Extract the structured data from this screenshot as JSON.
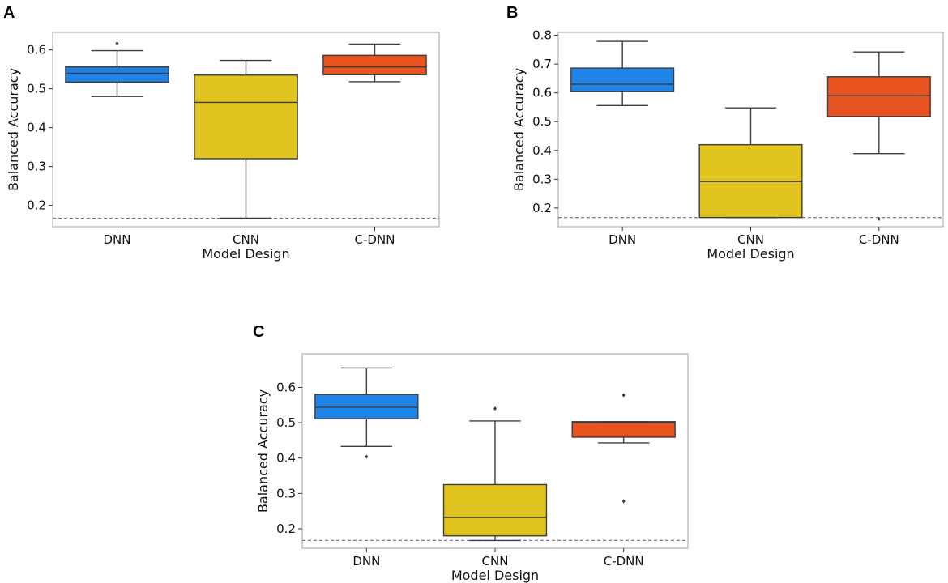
{
  "chart_data": [
    {
      "panel": "A",
      "type": "box",
      "xlabel": "Model Design",
      "ylabel": "Balanced Accuracy",
      "categories": [
        "DNN",
        "CNN",
        "C-DNN"
      ],
      "ylim": [
        0.145,
        0.645
      ],
      "yticks": [
        0.2,
        0.3,
        0.4,
        0.5,
        0.6
      ],
      "ytick_labels": [
        "0.2",
        "0.3",
        "0.4",
        "0.5",
        "0.6"
      ],
      "chance_level": 0.167,
      "boxes": [
        {
          "name": "DNN",
          "color": "#1f83e8",
          "whisker_low": 0.48,
          "q1": 0.517,
          "median": 0.54,
          "q3": 0.556,
          "whisker_high": 0.598,
          "outliers": [
            0.617
          ]
        },
        {
          "name": "CNN",
          "color": "#e1c41f",
          "whisker_low": 0.167,
          "q1": 0.32,
          "median": 0.465,
          "q3": 0.535,
          "whisker_high": 0.573,
          "outliers": []
        },
        {
          "name": "C-DNN",
          "color": "#e8541f",
          "whisker_low": 0.518,
          "q1": 0.536,
          "median": 0.556,
          "q3": 0.586,
          "whisker_high": 0.615,
          "outliers": []
        }
      ]
    },
    {
      "panel": "B",
      "type": "box",
      "xlabel": "Model Design",
      "ylabel": "Balanced Accuracy",
      "categories": [
        "DNN",
        "CNN",
        "C-DNN"
      ],
      "ylim": [
        0.135,
        0.81
      ],
      "yticks": [
        0.2,
        0.3,
        0.4,
        0.5,
        0.6,
        0.7,
        0.8
      ],
      "ytick_labels": [
        "0.2",
        "0.3",
        "0.4",
        "0.5",
        "0.6",
        "0.7",
        "0.8"
      ],
      "chance_level": 0.167,
      "boxes": [
        {
          "name": "DNN",
          "color": "#1f83e8",
          "whisker_low": 0.556,
          "q1": 0.604,
          "median": 0.63,
          "q3": 0.686,
          "whisker_high": 0.779,
          "outliers": []
        },
        {
          "name": "CNN",
          "color": "#e1c41f",
          "whisker_low": 0.167,
          "q1": 0.167,
          "median": 0.292,
          "q3": 0.42,
          "whisker_high": 0.548,
          "outliers": []
        },
        {
          "name": "C-DNN",
          "color": "#e8541f",
          "whisker_low": 0.389,
          "q1": 0.518,
          "median": 0.59,
          "q3": 0.656,
          "whisker_high": 0.742,
          "outliers": [
            0.162
          ]
        }
      ]
    },
    {
      "panel": "C",
      "type": "box",
      "xlabel": "Model Design",
      "ylabel": "Balanced Accuracy",
      "categories": [
        "DNN",
        "CNN",
        "C-DNN"
      ],
      "ylim": [
        0.145,
        0.695
      ],
      "yticks": [
        0.2,
        0.3,
        0.4,
        0.5,
        0.6
      ],
      "ytick_labels": [
        "0.2",
        "0.3",
        "0.4",
        "0.5",
        "0.6"
      ],
      "chance_level": 0.167,
      "boxes": [
        {
          "name": "DNN",
          "color": "#1f83e8",
          "whisker_low": 0.433,
          "q1": 0.511,
          "median": 0.544,
          "q3": 0.58,
          "whisker_high": 0.655,
          "outliers": [
            0.404
          ]
        },
        {
          "name": "CNN",
          "color": "#e1c41f",
          "whisker_low": 0.167,
          "q1": 0.18,
          "median": 0.232,
          "q3": 0.325,
          "whisker_high": 0.505,
          "outliers": [
            0.54
          ]
        },
        {
          "name": "C-DNN",
          "color": "#e8541f",
          "whisker_low": 0.443,
          "q1": 0.459,
          "median": 0.5,
          "q3": 0.503,
          "whisker_high": 0.503,
          "outliers": [
            0.578,
            0.278
          ]
        }
      ]
    }
  ]
}
